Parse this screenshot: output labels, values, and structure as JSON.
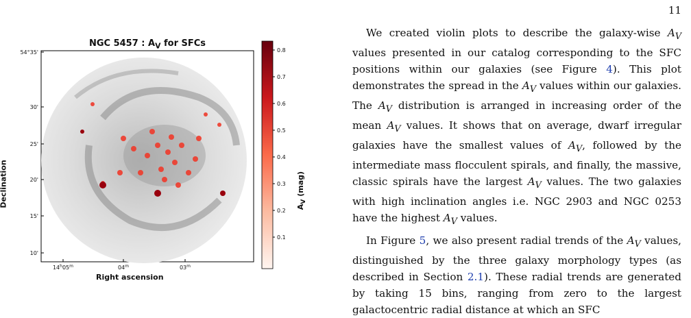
{
  "page_number": "11",
  "figure": {
    "title": "NGC 5457 : A_V for SFCs",
    "title_html": "NGC 5457 : A<sub>V</sub> for SFCs",
    "ylabel": "Declination",
    "xlabel": "Right ascension",
    "colorbar_label": "A_V (mag)",
    "colorbar_label_html": "A<sub>V</sub> (mag)",
    "dec_ticks": [
      "54°35'",
      "30'",
      "25'",
      "20'",
      "15'",
      "10'"
    ],
    "ra_ticks": [
      "14h05m",
      "04m",
      "03m"
    ],
    "colorbar_ticks": [
      "0.8",
      "0.7",
      "0.6",
      "0.5",
      "0.4",
      "0.3",
      "0.2",
      "0.1"
    ],
    "colorbar_range": [
      0.0,
      0.85
    ],
    "colormap": "Reds",
    "colors": {
      "low": "#fff5f0",
      "mid": "#fb6a4a",
      "high": "#67000d",
      "background": "#e9e9e9"
    }
  },
  "paragraph1": {
    "t1": "We created violin plots to describe the galaxy-wise ",
    "t2": " values presented in our catalog corresponding to the SFC positions within our galaxies (see Figure ",
    "ref1": "4",
    "t3": "). This plot demonstrates the spread in the ",
    "t4": " values within our galaxies. The ",
    "t5": " distribution is arranged in increasing order of the mean ",
    "t6": " values. It shows that on average, dwarf irregular galaxies have the smallest values of ",
    "t7": ", followed by the intermediate mass flocculent spirals, and finally, the massive, classic spirals have the largest ",
    "t8": " values. The two galaxies with high inclination angles i.e. NGC 2903 and NGC 0253 have the highest ",
    "t9": " values."
  },
  "paragraph2": {
    "t1": "In Figure ",
    "ref1": "5",
    "t2": ", we also present radial trends of the ",
    "t3": " values, distinguished by the three galaxy morphology types (as described in Section ",
    "ref2": "2.1",
    "t4": "). These radial trends are generated by taking 15 bins, ranging from zero to the largest galactocentric radial distance at which an SFC"
  }
}
